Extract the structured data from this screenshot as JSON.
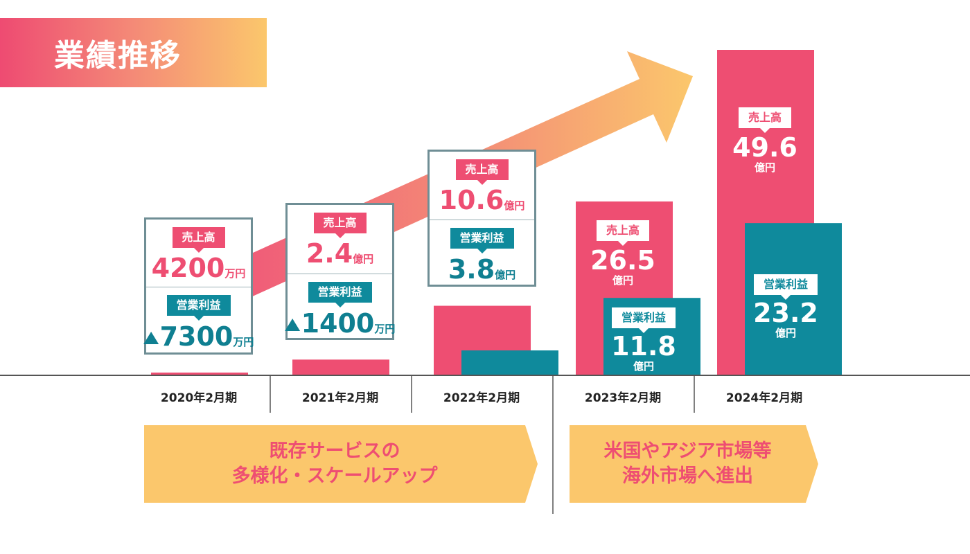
{
  "title": "業績推移",
  "colors": {
    "sales": "#ee4e72",
    "profit": "#0f8a9c",
    "phase": "#fbc76c",
    "box_border": "#6f8e95"
  },
  "labels": {
    "sales": "売上高",
    "profit": "営業利益"
  },
  "chart_data": {
    "type": "bar",
    "categories": [
      "2020年2月期",
      "2021年2月期",
      "2022年2月期",
      "2023年2月期",
      "2024年2月期"
    ],
    "series": [
      {
        "name": "売上高",
        "unit": "億円",
        "values": [
          0.42,
          2.4,
          10.6,
          26.5,
          49.6
        ]
      },
      {
        "name": "営業利益",
        "unit": "億円",
        "values": [
          -0.73,
          -0.14,
          3.8,
          11.8,
          23.2
        ]
      }
    ],
    "ylim": [
      0,
      49.6
    ],
    "annotations": [
      {
        "sales": {
          "num": "4200",
          "unit": "万円"
        },
        "profit": {
          "num": "7300",
          "unit": "万円",
          "negative": true
        }
      },
      {
        "sales": {
          "num": "2.4",
          "unit": "億円"
        },
        "profit": {
          "num": "1400",
          "unit": "万円",
          "negative": true
        }
      },
      {
        "sales": {
          "num": "10.6",
          "unit": "億円"
        },
        "profit": {
          "num": "3.8",
          "unit": "億円"
        }
      },
      {
        "sales": {
          "num": "26.5",
          "unit": "億円"
        },
        "profit": {
          "num": "11.8",
          "unit": "億円"
        }
      },
      {
        "sales": {
          "num": "49.6",
          "unit": "億円"
        },
        "profit": {
          "num": "23.2",
          "unit": "億円"
        }
      }
    ]
  },
  "phases": [
    {
      "line1": "既存サービスの",
      "line2": "多様化・スケールアップ"
    },
    {
      "line1": "米国やアジア市場等",
      "line2": "海外市場へ進出"
    }
  ]
}
